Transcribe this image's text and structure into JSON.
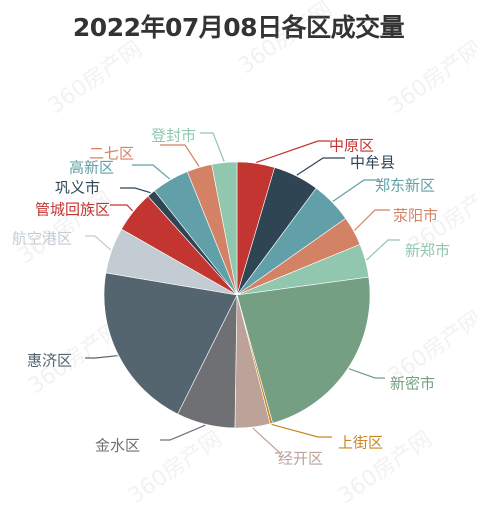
{
  "chart_data": {
    "type": "pie",
    "title": "2022年07月08日各区成交量",
    "slices": [
      {
        "label": "中原区",
        "value": 4.5,
        "color": "#c23531"
      },
      {
        "label": "中牟县",
        "value": 5.5,
        "color": "#2f4554"
      },
      {
        "label": "郑东新区",
        "value": 5.0,
        "color": "#61a0a8"
      },
      {
        "label": "荥阳市",
        "value": 3.5,
        "color": "#d48265"
      },
      {
        "label": "新郑市",
        "value": 4.0,
        "color": "#91c7ae"
      },
      {
        "label": "新密市",
        "value": 22.5,
        "color": "#749f83"
      },
      {
        "label": "上街区",
        "value": 0.3,
        "color": "#ca8622"
      },
      {
        "label": "经开区",
        "value": 4.2,
        "color": "#bda29a"
      },
      {
        "label": "金水区",
        "value": 7.0,
        "color": "#6e7074"
      },
      {
        "label": "惠济区",
        "value": 20.0,
        "color": "#546570"
      },
      {
        "label": "航空港区",
        "value": 5.5,
        "color": "#c4ccd3"
      },
      {
        "label": "管城回族区",
        "value": 5.0,
        "color": "#c23531"
      },
      {
        "label": "巩义市",
        "value": 1.0,
        "color": "#2f4554"
      },
      {
        "label": "高新区",
        "value": 4.5,
        "color": "#61a0a8"
      },
      {
        "label": "二七区",
        "value": 3.0,
        "color": "#d48265"
      },
      {
        "label": "登封市",
        "value": 3.0,
        "color": "#91c7ae"
      }
    ]
  },
  "watermark_text": "360房产网"
}
